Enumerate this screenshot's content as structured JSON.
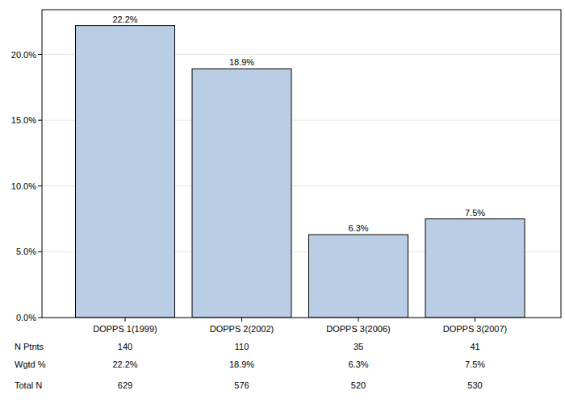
{
  "chart_data": {
    "type": "bar",
    "categories": [
      "DOPPS 1(1999)",
      "DOPPS 2(2002)",
      "DOPPS 3(2006)",
      "DOPPS 3(2007)"
    ],
    "values": [
      22.2,
      18.9,
      6.3,
      7.5
    ],
    "value_labels": [
      "22.2%",
      "18.9%",
      "6.3%",
      "7.5%"
    ],
    "data_labels": true,
    "color": "#b9cde5",
    "ylim": [
      0,
      23.4
    ],
    "yticks": [
      {
        "value": 0,
        "label": "0.0%"
      },
      {
        "value": 5,
        "label": "5.0%"
      },
      {
        "value": 10,
        "label": "10.0%"
      },
      {
        "value": 15,
        "label": "15.0%"
      },
      {
        "value": 20,
        "label": "20.0%"
      }
    ],
    "grid": true
  },
  "table": {
    "rows": [
      {
        "label": "N Ptnts",
        "cells": [
          140,
          110,
          35,
          41
        ]
      },
      {
        "label": "Wgtd %",
        "cells": [
          "22.2%",
          "18.9%",
          "6.3%",
          "7.5%"
        ]
      },
      {
        "label": "Total N",
        "cells": [
          629,
          576,
          520,
          530
        ]
      }
    ]
  }
}
